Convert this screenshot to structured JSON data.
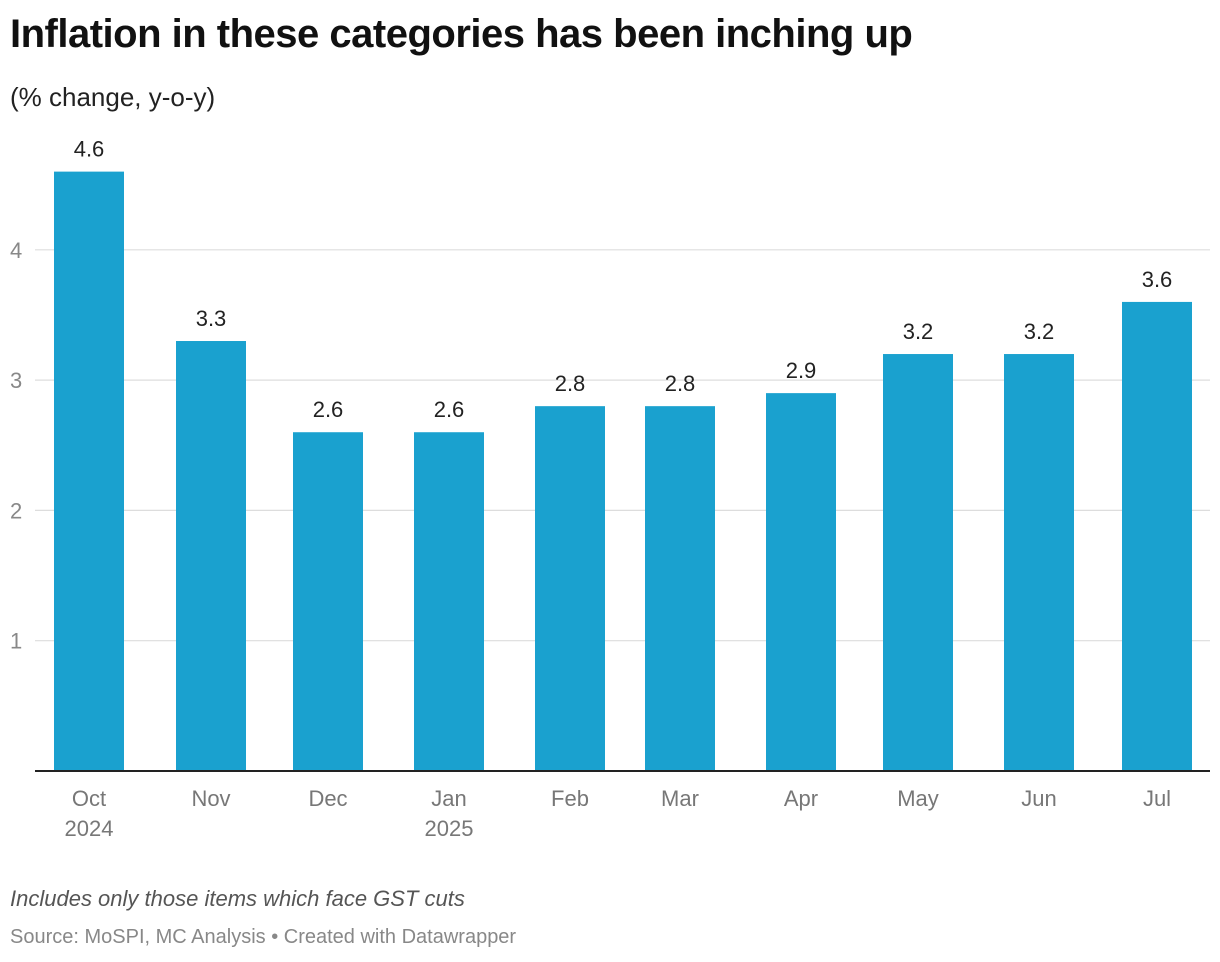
{
  "title": "Inflation in these categories has been inching up",
  "subtitle": "(% change, y-o-y)",
  "note": "Includes only those items which face GST cuts",
  "source": "Source: MoSPI, MC Analysis • Created with Datawrapper",
  "colors": {
    "bar": "#1aa1cf",
    "grid": "#dddddd",
    "axis": "#222222",
    "tick": "#888888",
    "label": "#222222",
    "category": "#777777"
  },
  "chart_data": {
    "type": "bar",
    "categories": [
      [
        "Oct",
        "2024"
      ],
      [
        "Nov"
      ],
      [
        "Dec"
      ],
      [
        "Jan",
        "2025"
      ],
      [
        "Feb"
      ],
      [
        "Mar"
      ],
      [
        "Apr"
      ],
      [
        "May"
      ],
      [
        "Jun"
      ],
      [
        "Jul"
      ]
    ],
    "values": [
      4.6,
      3.3,
      2.6,
      2.6,
      2.8,
      2.8,
      2.9,
      3.2,
      3.2,
      3.6
    ],
    "value_labels": [
      "4.6",
      "3.3",
      "2.6",
      "2.6",
      "2.8",
      "2.8",
      "2.9",
      "3.2",
      "3.2",
      "3.6"
    ],
    "yticks": [
      1,
      2,
      3,
      4
    ],
    "ylim": [
      0,
      4.6
    ],
    "grid": true
  }
}
